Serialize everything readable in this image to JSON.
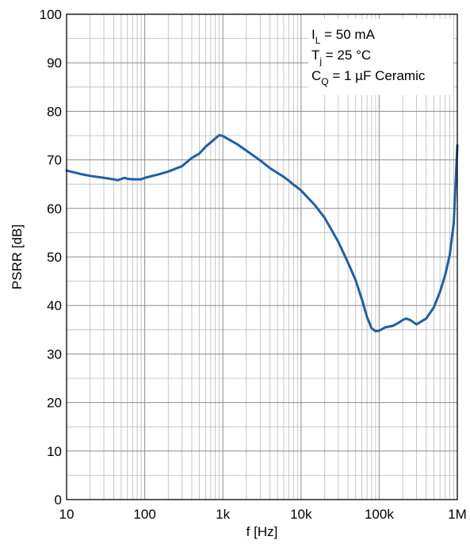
{
  "chart_data": {
    "type": "line",
    "title": "",
    "xlabel": "f [Hz]",
    "ylabel": "PSRR [dB]",
    "xscale": "log",
    "xlim": [
      10,
      1000000
    ],
    "ylim": [
      0,
      100
    ],
    "grid": true,
    "x_tick_labels": [
      "10",
      "100",
      "1k",
      "10k",
      "100k",
      "1M"
    ],
    "y_tick_labels": [
      "0",
      "10",
      "20",
      "30",
      "40",
      "50",
      "60",
      "70",
      "80",
      "90",
      "100"
    ],
    "annotations": [
      {
        "main": "I",
        "sub": "L",
        "rest": " = 50 mA"
      },
      {
        "main": "T",
        "sub": "j",
        "rest": " = 25 °C"
      },
      {
        "main": "C",
        "sub": "Q",
        "rest": " = 1 µF Ceramic"
      }
    ],
    "line_color": "#1f5fa6",
    "series": [
      {
        "x": [
          10,
          15,
          20,
          30,
          40,
          45,
          55,
          60,
          70,
          90,
          100,
          150,
          200,
          300,
          400,
          500,
          600,
          700,
          800,
          900,
          1000,
          1500,
          2000,
          3000,
          4000,
          5000,
          6000,
          7000,
          8000,
          9000,
          10000,
          15000,
          20000,
          30000,
          40000,
          50000,
          60000,
          70000,
          80000,
          90000,
          100000,
          120000,
          150000,
          180000,
          200000,
          220000,
          250000,
          300000,
          400000,
          500000,
          600000,
          700000,
          800000,
          900000,
          950000,
          1000000
        ],
        "y": [
          67.8,
          67.1,
          66.7,
          66.3,
          66.0,
          65.8,
          66.3,
          66.1,
          66.0,
          66.0,
          66.3,
          67.0,
          67.6,
          68.7,
          70.4,
          71.3,
          72.7,
          73.6,
          74.4,
          75.1,
          74.9,
          73.3,
          71.9,
          69.9,
          68.3,
          67.3,
          66.5,
          65.7,
          64.9,
          64.3,
          63.7,
          60.7,
          58.1,
          53.1,
          48.8,
          45.2,
          41.3,
          37.6,
          35.3,
          34.7,
          34.8,
          35.5,
          35.8,
          36.5,
          37.0,
          37.3,
          37.0,
          36.1,
          37.3,
          39.6,
          42.8,
          46.3,
          50.4,
          57.0,
          65.0,
          73.0
        ]
      }
    ]
  }
}
